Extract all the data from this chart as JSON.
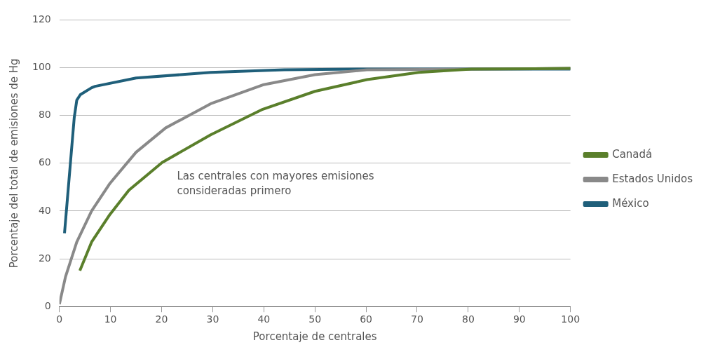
{
  "chart_data": {
    "type": "line",
    "xlabel": "Porcentaje de centrales",
    "ylabel": "Porcentaje del total de emisiones de Hg",
    "xlim": [
      0,
      100
    ],
    "xticks": [
      0,
      10,
      20,
      30,
      40,
      50,
      60,
      70,
      80,
      90,
      100
    ],
    "ylim": [
      0,
      120
    ],
    "yticks": [
      0,
      20,
      40,
      60,
      80,
      100,
      120
    ],
    "grid": "y",
    "legend": "right",
    "marker": "none",
    "line_style": "solid",
    "annotations": [
      "Las centrales con mayores emisiones\nconsideradas primero"
    ],
    "series": [
      {
        "name": "Canadá",
        "color": "#5a7f2b",
        "x": [
          4,
          6.3,
          9.9,
          13.6,
          20.1,
          29.6,
          39.8,
          50,
          60.2,
          70.3,
          80.6,
          100
        ],
        "values": [
          15,
          27,
          38.6,
          48.7,
          60.3,
          71.9,
          82.6,
          90.1,
          95,
          98,
          99.4,
          99.7
        ]
      },
      {
        "name": "Estados Unidos",
        "color": "#898989",
        "x": [
          0,
          1.2,
          3.4,
          6.3,
          9.9,
          15,
          20.8,
          29.6,
          39.8,
          50,
          60.2,
          100
        ],
        "values": [
          1,
          12.5,
          27,
          40,
          51.6,
          64.6,
          74.8,
          84.9,
          92.8,
          97.1,
          99.1,
          99.7
        ]
      },
      {
        "name": "México",
        "color": "#1f5f7a",
        "x": [
          1,
          2.9,
          3.4,
          4.1,
          6.3,
          7,
          15,
          29.6,
          44,
          58.7,
          100
        ],
        "values": [
          30.7,
          79,
          86.4,
          88.7,
          91.6,
          92.2,
          95.7,
          98,
          99.1,
          99.4,
          99.4
        ]
      }
    ]
  }
}
